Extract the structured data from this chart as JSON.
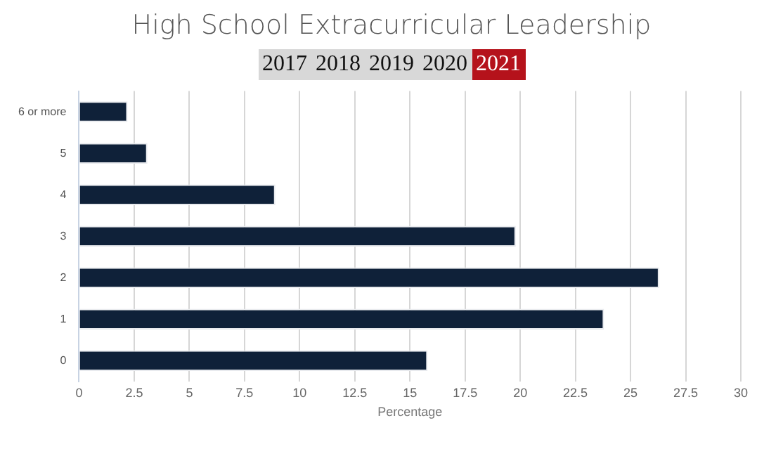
{
  "chart_data": {
    "type": "bar",
    "orientation": "horizontal",
    "title": "High School Extracurricular Leadership",
    "annotations": [
      "2017",
      "2018",
      "2019",
      "2020",
      "2021"
    ],
    "categories": [
      "6 or more",
      "5",
      "4",
      "3",
      "2",
      "1",
      "0"
    ],
    "values": [
      2.2,
      3.1,
      8.9,
      19.8,
      26.3,
      23.8,
      15.8
    ],
    "color": "#0f2139",
    "xlabel": "Percentage",
    "xlim": [
      0,
      30
    ],
    "xticks": [
      0,
      2.5,
      5,
      7.5,
      10,
      12.5,
      15,
      17.5,
      20,
      22.5,
      25,
      27.5,
      30
    ],
    "grid": "x",
    "legend": false
  }
}
